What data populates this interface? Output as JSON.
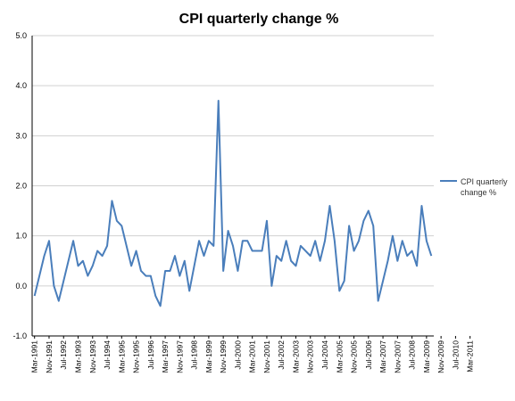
{
  "chart_data": {
    "type": "line",
    "title": "CPI quarterly change %",
    "xlabel": "",
    "ylabel": "",
    "ylim": [
      -1.0,
      5.0
    ],
    "yticks": [
      "-1.0",
      "0.0",
      "1.0",
      "2.0",
      "3.0",
      "4.0",
      "5.0"
    ],
    "grid": true,
    "legend_position": "right",
    "line_color": "#4a7ebb",
    "x_tick_labels": [
      "Mar-1991",
      "Nov-1991",
      "Jul-1992",
      "Mar-1993",
      "Nov-1993",
      "Jul-1994",
      "Mar-1995",
      "Nov-1995",
      "Jul-1996",
      "Mar-1997",
      "Nov-1997",
      "Jul-1998",
      "Mar-1999",
      "Nov-1999",
      "Jul-2000",
      "Mar-2001",
      "Nov-2001",
      "Jul-2002",
      "Mar-2003",
      "Nov-2003",
      "Jul-2004",
      "Mar-2005",
      "Nov-2005",
      "Jul-2006",
      "Mar-2007",
      "Nov-2007",
      "Jul-2008",
      "Mar-2009",
      "Nov-2009",
      "Jul-2010",
      "Mar-2011"
    ],
    "series": [
      {
        "name": "CPI quarterly change %",
        "values": [
          -0.2,
          0.2,
          0.6,
          0.9,
          0.0,
          -0.3,
          0.1,
          0.5,
          0.9,
          0.4,
          0.5,
          0.2,
          0.4,
          0.7,
          0.6,
          0.8,
          1.7,
          1.3,
          1.2,
          0.8,
          0.4,
          0.7,
          0.3,
          0.2,
          0.2,
          -0.2,
          -0.4,
          0.3,
          0.3,
          0.6,
          0.2,
          0.5,
          -0.1,
          0.4,
          0.9,
          0.6,
          0.9,
          0.8,
          3.7,
          0.3,
          1.1,
          0.8,
          0.3,
          0.9,
          0.9,
          0.7,
          0.7,
          0.7,
          1.3,
          0.0,
          0.6,
          0.5,
          0.9,
          0.5,
          0.4,
          0.8,
          0.7,
          0.6,
          0.9,
          0.5,
          0.9,
          1.6,
          0.9,
          -0.1,
          0.1,
          1.2,
          0.7,
          0.9,
          1.3,
          1.5,
          1.2,
          -0.3,
          0.1,
          0.5,
          1.0,
          0.5,
          0.9,
          0.6,
          0.7,
          0.4,
          1.6,
          0.9,
          0.6
        ]
      }
    ]
  }
}
